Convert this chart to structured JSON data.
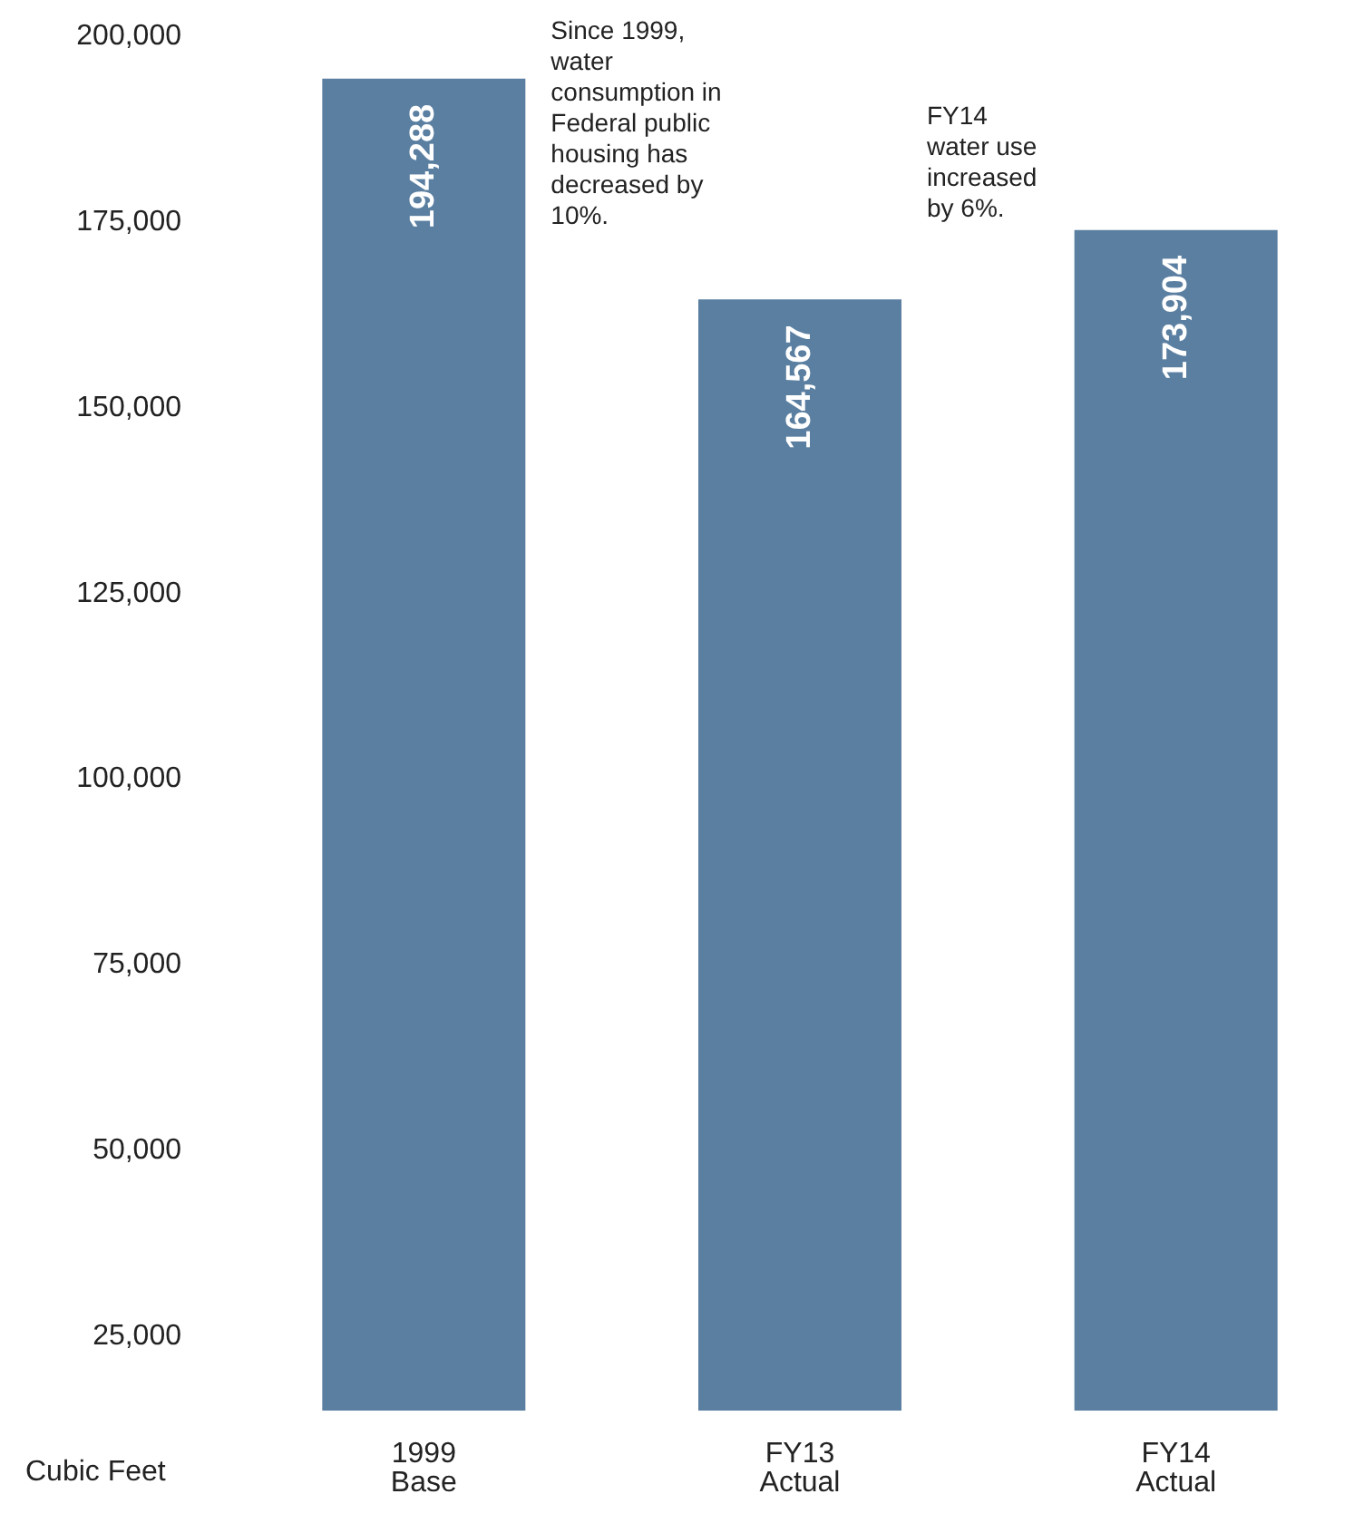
{
  "chart_data": {
    "type": "bar",
    "ylabel": "Cubic Feet",
    "categories": [
      "1999\nBase",
      "FY13\nActual",
      "FY14\nActual"
    ],
    "values": [
      194288,
      164567,
      173904
    ],
    "color": "#5b7fa1",
    "ylim": [
      15000,
      200000
    ],
    "yticks": [
      {
        "value": 25000,
        "label": "25,000"
      },
      {
        "value": 50000,
        "label": "50,000"
      },
      {
        "value": 75000,
        "label": "75,000"
      },
      {
        "value": 100000,
        "label": "100,000"
      },
      {
        "value": 125000,
        "label": "125,000"
      },
      {
        "value": 150000,
        "label": "150,000"
      },
      {
        "value": 175000,
        "label": "175,000"
      },
      {
        "value": 200000,
        "label": "200,000"
      }
    ],
    "value_labels": [
      "194,288",
      "164,567",
      "173,904"
    ],
    "grid": false,
    "annotations": [
      "Since 1999, water consumption in Federal public housing has decreased by 10%.",
      "FY14 water use increased by 6%."
    ]
  }
}
